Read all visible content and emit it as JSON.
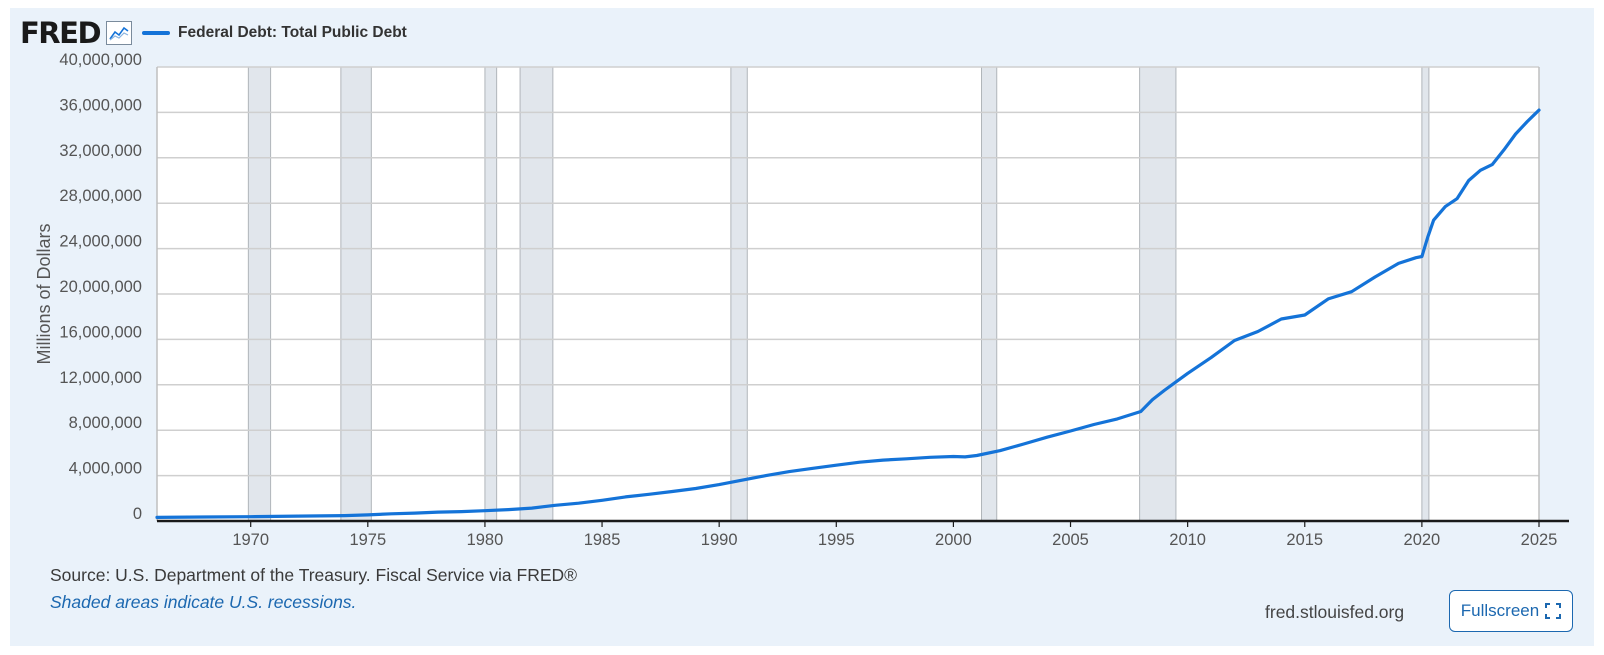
{
  "header": {
    "logo": "FRED",
    "logo_icon": "line-chart-icon"
  },
  "footer": {
    "source": "Source: U.S. Department of the Treasury. Fiscal Service via FRED®",
    "note": "Shaded areas indicate U.S. recessions.",
    "url": "fred.stlouisfed.org",
    "fullscreen_label": "Fullscreen",
    "fullscreen_icon": "fullscreen-icon"
  },
  "colors": {
    "line": "#1473d8",
    "recession": "#e1e6ec",
    "background": "#eaf2fa",
    "plot": "#ffffff",
    "grid": "#cfcfcf",
    "accent": "#1c68b0"
  },
  "chart_data": {
    "type": "line",
    "title": "",
    "xlabel": "",
    "ylabel": "Millions of Dollars",
    "ylim": [
      0,
      40000000
    ],
    "xlim": [
      1966.0,
      2025.0
    ],
    "grid": true,
    "legend_position": "top-left",
    "y_ticks": [
      0,
      4000000,
      8000000,
      12000000,
      16000000,
      20000000,
      24000000,
      28000000,
      32000000,
      36000000,
      40000000
    ],
    "y_tick_labels": [
      "0",
      "4,000,000",
      "8,000,000",
      "12,000,000",
      "16,000,000",
      "20,000,000",
      "24,000,000",
      "28,000,000",
      "32,000,000",
      "36,000,000",
      "40,000,000"
    ],
    "x_ticks": [
      1970,
      1975,
      1980,
      1985,
      1990,
      1995,
      2000,
      2005,
      2010,
      2015,
      2020,
      2025
    ],
    "x_tick_labels": [
      "1970",
      "1975",
      "1980",
      "1985",
      "1990",
      "1995",
      "2000",
      "2005",
      "2010",
      "2015",
      "2020",
      "2025"
    ],
    "recessions": [
      [
        1969.9,
        1970.85
      ],
      [
        1973.85,
        1975.15
      ],
      [
        1980.0,
        1980.5
      ],
      [
        1981.5,
        1982.9
      ],
      [
        1990.5,
        1991.2
      ],
      [
        2001.2,
        2001.85
      ],
      [
        2007.95,
        2009.5
      ],
      [
        2020.0,
        2020.3
      ]
    ],
    "series": [
      {
        "name": "Federal Debt: Total Public Debt",
        "x": [
          1966.0,
          1968.0,
          1970.0,
          1972.0,
          1974.0,
          1975.0,
          1976.0,
          1977.0,
          1978.0,
          1979.0,
          1980.0,
          1981.0,
          1982.0,
          1983.0,
          1984.0,
          1985.0,
          1986.0,
          1987.0,
          1988.0,
          1989.0,
          1990.0,
          1991.0,
          1992.0,
          1993.0,
          1994.0,
          1995.0,
          1996.0,
          1997.0,
          1998.0,
          1999.0,
          2000.0,
          2000.5,
          2001.0,
          2002.0,
          2003.0,
          2004.0,
          2005.0,
          2006.0,
          2007.0,
          2008.0,
          2008.5,
          2009.0,
          2010.0,
          2011.0,
          2012.0,
          2013.0,
          2014.0,
          2015.0,
          2016.0,
          2017.0,
          2018.0,
          2019.0,
          2019.75,
          2020.0,
          2020.25,
          2020.5,
          2021.0,
          2021.5,
          2022.0,
          2022.5,
          2023.0,
          2023.5,
          2024.0,
          2024.5,
          2024.8,
          2025.0
        ],
        "values": [
          320000,
          350000,
          380000,
          430000,
          480000,
          540000,
          630000,
          700000,
          780000,
          830000,
          910000,
          1000000,
          1140000,
          1380000,
          1570000,
          1820000,
          2120000,
          2350000,
          2600000,
          2860000,
          3210000,
          3600000,
          4000000,
          4350000,
          4640000,
          4920000,
          5180000,
          5370000,
          5480000,
          5610000,
          5680000,
          5650000,
          5770000,
          6200000,
          6780000,
          7380000,
          7930000,
          8500000,
          9000000,
          9650000,
          10700000,
          11500000,
          13000000,
          14400000,
          15900000,
          16700000,
          17800000,
          18150000,
          19570000,
          20200000,
          21500000,
          22700000,
          23200000,
          23300000,
          25000000,
          26500000,
          27700000,
          28400000,
          30000000,
          30900000,
          31400000,
          32700000,
          34100000,
          35200000,
          35800000,
          36200000
        ]
      }
    ]
  }
}
